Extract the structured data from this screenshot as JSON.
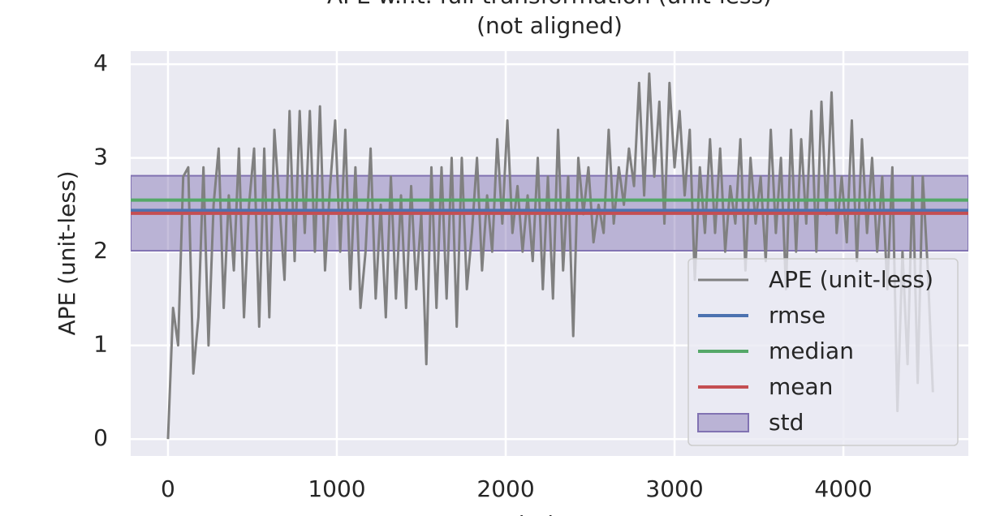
{
  "chart_data": {
    "type": "line",
    "title": "APE w.r.t. full transformation (unit-less)",
    "subtitle": "(not aligned)",
    "xlabel": "index",
    "ylabel": "APE (unit-less)",
    "xlim": [
      -221,
      4740
    ],
    "ylim": [
      -0.18,
      4.14
    ],
    "xticks": [
      0,
      1000,
      2000,
      3000,
      4000
    ],
    "yticks": [
      0,
      1,
      2,
      3,
      4
    ],
    "grid": true,
    "legend": "lower right",
    "series": [
      {
        "name": "APE (unit-less)",
        "color": "#808080",
        "x": [
          0,
          30,
          60,
          90,
          120,
          150,
          180,
          210,
          240,
          270,
          300,
          330,
          360,
          390,
          420,
          450,
          480,
          510,
          540,
          570,
          600,
          630,
          660,
          690,
          720,
          750,
          780,
          810,
          840,
          870,
          900,
          930,
          960,
          990,
          1020,
          1050,
          1080,
          1110,
          1140,
          1170,
          1200,
          1230,
          1260,
          1290,
          1320,
          1350,
          1380,
          1410,
          1440,
          1470,
          1500,
          1530,
          1560,
          1590,
          1620,
          1650,
          1680,
          1710,
          1740,
          1770,
          1800,
          1830,
          1860,
          1890,
          1920,
          1950,
          1980,
          2010,
          2040,
          2070,
          2100,
          2130,
          2160,
          2190,
          2220,
          2250,
          2280,
          2310,
          2340,
          2370,
          2400,
          2430,
          2460,
          2490,
          2520,
          2550,
          2580,
          2610,
          2640,
          2670,
          2700,
          2730,
          2760,
          2790,
          2820,
          2850,
          2880,
          2910,
          2940,
          2970,
          3000,
          3030,
          3060,
          3090,
          3120,
          3150,
          3180,
          3210,
          3240,
          3270,
          3300,
          3330,
          3360,
          3390,
          3420,
          3450,
          3480,
          3510,
          3540,
          3570,
          3600,
          3630,
          3660,
          3690,
          3720,
          3750,
          3780,
          3810,
          3840,
          3870,
          3900,
          3930,
          3960,
          3990,
          4020,
          4050,
          4080,
          4110,
          4140,
          4170,
          4200,
          4230,
          4260,
          4290,
          4320,
          4350,
          4380,
          4410,
          4440,
          4470,
          4500,
          4530
        ],
        "values": [
          0,
          1.4,
          1.0,
          2.8,
          2.9,
          0.7,
          1.3,
          2.9,
          1.0,
          2.5,
          3.1,
          1.4,
          2.6,
          1.8,
          3.1,
          1.3,
          2.5,
          3.1,
          1.2,
          3.1,
          1.3,
          3.3,
          2.5,
          1.7,
          3.5,
          1.9,
          3.5,
          2.2,
          3.5,
          2.0,
          3.55,
          1.8,
          2.7,
          3.4,
          2.0,
          3.3,
          1.6,
          2.9,
          1.4,
          2.0,
          3.1,
          1.5,
          2.5,
          1.3,
          2.8,
          1.5,
          2.6,
          1.4,
          2.7,
          1.6,
          2.4,
          0.8,
          2.9,
          1.4,
          2.9,
          1.5,
          3.0,
          1.2,
          3.0,
          1.6,
          2.2,
          3.0,
          1.8,
          2.6,
          2.0,
          3.2,
          2.3,
          3.4,
          2.2,
          2.7,
          2.0,
          2.6,
          1.9,
          3.0,
          1.6,
          2.8,
          1.5,
          3.3,
          1.8,
          2.8,
          1.1,
          3.0,
          2.4,
          2.9,
          2.1,
          2.5,
          2.2,
          3.3,
          2.3,
          2.9,
          2.5,
          3.1,
          2.7,
          3.8,
          2.6,
          3.9,
          2.8,
          3.6,
          2.3,
          3.8,
          2.9,
          3.5,
          2.6,
          3.3,
          1.7,
          2.9,
          2.2,
          3.2,
          2.2,
          3.1,
          2.0,
          2.7,
          2.3,
          3.2,
          1.8,
          3.0,
          2.3,
          2.8,
          1.9,
          3.3,
          2.2,
          3.0,
          1.6,
          3.3,
          2.0,
          3.2,
          2.3,
          3.5,
          2.0,
          3.6,
          2.4,
          3.7,
          2.2,
          2.8,
          2.1,
          3.4,
          1.9,
          3.2,
          2.2,
          3.0,
          2.0,
          2.8,
          1.6,
          2.9,
          0.3,
          2.0,
          0.8,
          2.8,
          0.6,
          2.8,
          1.8,
          0.5
        ]
      }
    ],
    "hlines": [
      {
        "name": "rmse",
        "color": "#4c72b0",
        "value": 2.44
      },
      {
        "name": "median",
        "color": "#55a868",
        "value": 2.55
      },
      {
        "name": "mean",
        "color": "#c44e52",
        "value": 2.41
      }
    ],
    "band": {
      "name": "std",
      "color": "#8172b2",
      "value": 0.4
    }
  }
}
